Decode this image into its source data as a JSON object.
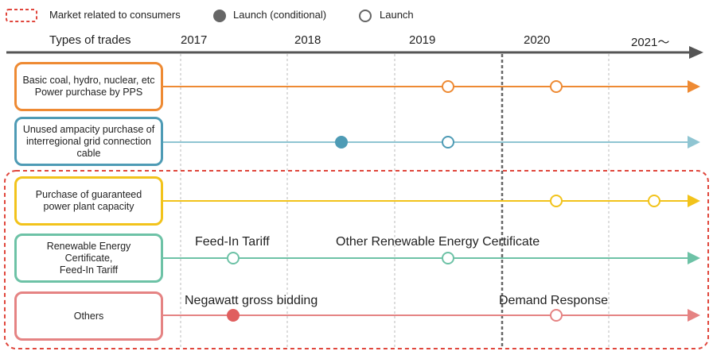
{
  "legend": {
    "market_label": "Market related to consumers",
    "conditional_label": "Launch (conditional)",
    "launch_label": "Launch"
  },
  "header": {
    "types_label": "Types of trades",
    "years": [
      "2017",
      "2018",
      "2019",
      "2020",
      "2021～"
    ]
  },
  "rows": [
    {
      "label_lines": [
        "Basic coal, hydro, nuclear, etc",
        "Power purchase by PPS"
      ],
      "color": "#EE8A33"
    },
    {
      "label_lines": [
        "Unused ampacity purchase of",
        "interregional grid connection",
        "cable"
      ],
      "color": "#4E9BB5"
    },
    {
      "label_lines": [
        "Purchase of guaranteed",
        "power plant capacity"
      ],
      "color": "#F2C31B"
    },
    {
      "label_lines": [
        "Renewable Energy",
        "Certificate,",
        "Feed-In Tariff"
      ],
      "color": "#6DC2A6"
    },
    {
      "label_lines": [
        "Others"
      ],
      "color": "#E58383"
    }
  ],
  "annotations": {
    "fit": "Feed-In Tariff",
    "other_rec": "Other Renewable Energy Certificate",
    "negawatt": "Negawatt gross bidding",
    "demand_response": "Demand Response"
  },
  "colors": {
    "axis": "#555555",
    "dashed_region": "#E0463C",
    "grid": "#bbbbbb",
    "divider": "#666666"
  }
}
